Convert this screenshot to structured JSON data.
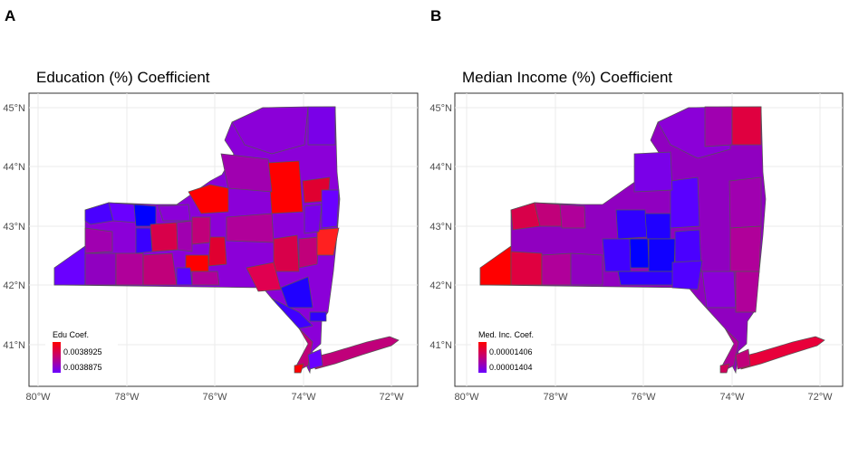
{
  "panels": [
    {
      "letter": "A",
      "title": "Education (%) Coefficient",
      "legend": {
        "title": "Edu Coef.",
        "high": "0.0038925",
        "low": "0.0038875",
        "high_color": "#ff0000",
        "low_color": "#0000ff"
      }
    },
    {
      "letter": "B",
      "title": "Median Income (%) Coefficient",
      "legend": {
        "title": "Med. Inc. Coef.",
        "high": "0.00001406",
        "low": "0.00001404",
        "high_color": "#ff0000",
        "low_color": "#0000ff"
      }
    }
  ],
  "axes": {
    "x_ticks": [
      "80°W",
      "78°W",
      "76°W",
      "74°W",
      "72°W"
    ],
    "y_ticks": [
      "45°N",
      "44°N",
      "43°N",
      "42°N",
      "41°N"
    ]
  },
  "colors": {
    "high": "#ff0000",
    "low": "#0000ff",
    "border": "#555555",
    "grid": "#ebebeb"
  },
  "chart_data": [
    {
      "type": "choropleth",
      "title": "Education (%) Coefficient",
      "legend_title": "Edu Coef.",
      "legend_range": [
        0.0038875,
        0.0038925
      ],
      "legend_placement": "bottom-left",
      "x_range": [
        "80°W",
        "72°W"
      ],
      "y_range": [
        "41°N",
        "45°N"
      ]
    },
    {
      "type": "choropleth",
      "title": "Median Income (%) Coefficient",
      "legend_title": "Med. Inc. Coef.",
      "legend_range": [
        1.404e-05,
        1.406e-05
      ],
      "legend_placement": "bottom-left",
      "x_range": [
        "80°W",
        "72°W"
      ],
      "y_range": [
        "41°N",
        "45°N"
      ]
    }
  ]
}
